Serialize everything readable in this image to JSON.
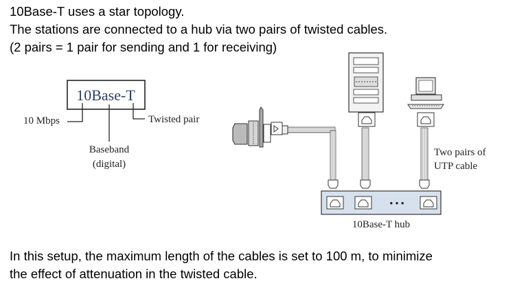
{
  "intro": {
    "line1": "10Base-T uses a star topology.",
    "line2": "The stations are connected to a hub via two pairs of twisted cables.",
    "line3": "(2 pairs = 1 pair for sending and 1 for receiving)"
  },
  "naming": {
    "title": "10Base-T",
    "speed": "10 Mbps",
    "medium": "Twisted pair",
    "signal_line1": "Baseband",
    "signal_line2": "(digital)"
  },
  "network": {
    "cable_label_line1": "Two pairs of",
    "cable_label_line2": "UTP cable",
    "hub_label": "10Base-T hub",
    "hub_ellipsis": "• • •"
  },
  "outro": {
    "line1": "In this setup, the maximum length of the cables is set to 100 m, to minimize",
    "line2": "the effect of attenuation in the twisted cable."
  }
}
